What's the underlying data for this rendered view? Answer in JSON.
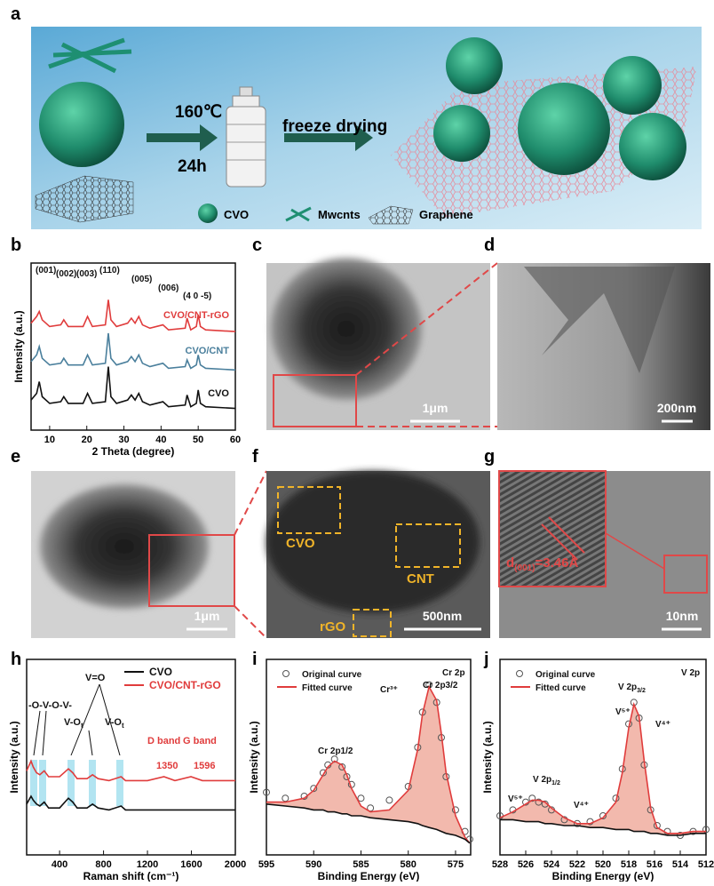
{
  "panel_labels": [
    "a",
    "b",
    "c",
    "d",
    "e",
    "f",
    "g",
    "h",
    "i",
    "j"
  ],
  "scheme": {
    "temperature": "160℃",
    "time": "24h",
    "step2": "freeze drying",
    "legend": [
      "CVO",
      "Mwcnts",
      "Graphene"
    ]
  },
  "micrographs": {
    "c": {
      "scale_bar": "1μm"
    },
    "d": {
      "scale_bar": "200nm"
    },
    "e": {
      "scale_bar": "1μm"
    },
    "f": {
      "scale_bar": "500nm",
      "labels": [
        "CVO",
        "CNT",
        "rGO"
      ]
    },
    "g": {
      "scale_bar": "10nm",
      "d_spacing": {
        "text": "d",
        "sub": "(001)",
        "rest": "=3.46Å"
      }
    }
  },
  "chart_data": [
    {
      "type": "line",
      "xlabel": "2 Theta (degree)",
      "ylabel": "Intensity (a.u.)",
      "xlim": [
        5,
        60
      ],
      "ylim": [
        0,
        10
      ],
      "xticks": [
        10,
        20,
        30,
        40,
        50,
        60
      ],
      "x": [
        5,
        6.5,
        7.2,
        8,
        10,
        13,
        13.8,
        15,
        19,
        20.2,
        21.5,
        25,
        25.8,
        26.5,
        28,
        31,
        32,
        33,
        34,
        35,
        37,
        40.5,
        42,
        46.5,
        47,
        48,
        49.5,
        50,
        50.6,
        52,
        60
      ],
      "annotations": [
        {
          "text": "(001)"
        },
        {
          "text": "(002)"
        },
        {
          "text": "(003)"
        },
        {
          "text": "(110)"
        },
        {
          "text": "(005)"
        },
        {
          "text": "(006)"
        },
        {
          "text": "(4 0 -5)"
        }
      ],
      "series": [
        {
          "name": "CVO/CNT-rGO",
          "color": "#e03c3c",
          "mode": "line",
          "values": [
            6.4,
            6.8,
            7.1,
            6.6,
            6.2,
            6.3,
            6.6,
            6.2,
            6.2,
            6.8,
            6.2,
            6.3,
            7.8,
            6.6,
            6.2,
            6.4,
            6.7,
            6.4,
            6.8,
            6.3,
            6.1,
            6.3,
            6.0,
            6.1,
            6.7,
            6.0,
            6.2,
            6.9,
            6.2,
            6.0,
            5.9
          ]
        },
        {
          "name": "CVO/CNT",
          "color": "#4a7f9c",
          "mode": "line",
          "values": [
            4.1,
            4.5,
            5.0,
            4.3,
            3.9,
            4.0,
            4.3,
            3.9,
            3.9,
            4.5,
            3.9,
            4.0,
            5.8,
            4.3,
            3.9,
            4.1,
            4.4,
            4.1,
            4.5,
            4.0,
            3.8,
            4.0,
            3.7,
            3.8,
            4.2,
            3.7,
            3.9,
            4.5,
            3.9,
            3.7,
            3.6
          ]
        },
        {
          "name": "CVO",
          "color": "#111111",
          "mode": "line",
          "values": [
            1.8,
            2.2,
            2.9,
            2.0,
            1.6,
            1.7,
            2.0,
            1.6,
            1.6,
            2.2,
            1.6,
            1.7,
            3.8,
            2.0,
            1.6,
            1.8,
            2.1,
            1.8,
            2.2,
            1.7,
            1.5,
            1.7,
            1.4,
            1.5,
            2.1,
            1.4,
            1.6,
            2.4,
            1.6,
            1.4,
            1.3
          ]
        }
      ]
    },
    {
      "type": "line",
      "xlabel": "Raman shift (cm⁻¹)",
      "ylabel": "Intensity (a.u.)",
      "xlim": [
        100,
        2000
      ],
      "ylim": [
        0,
        10
      ],
      "xticks": [
        400,
        800,
        1200,
        1600,
        2000
      ],
      "x": [
        100,
        140,
        160,
        190,
        220,
        260,
        300,
        400,
        480,
        520,
        560,
        650,
        700,
        750,
        850,
        960,
        1000,
        1200,
        1350,
        1450,
        1596,
        1700,
        2000
      ],
      "annotations": [
        {
          "text": "-O-V-O-V-"
        },
        {
          "text": "V=O"
        },
        {
          "text": "V-O",
          "sub": "t"
        },
        {
          "text": "V-O",
          "sub": "t"
        },
        {
          "text": "D band"
        },
        {
          "text": "G band"
        },
        {
          "text": "1350"
        },
        {
          "text": "1596"
        }
      ],
      "series": [
        {
          "name": "CVO",
          "color": "#111111",
          "mode": "line",
          "values": [
            2.6,
            3.0,
            2.8,
            2.6,
            2.5,
            2.7,
            2.4,
            2.4,
            2.9,
            2.7,
            2.4,
            2.4,
            2.6,
            2.4,
            2.3,
            2.5,
            2.3,
            2.3,
            2.3,
            2.3,
            2.3,
            2.3,
            2.3
          ]
        },
        {
          "name": "CVO/CNT-rGO",
          "color": "#e03c3c",
          "mode": "line",
          "values": [
            4.3,
            4.8,
            4.5,
            4.2,
            4.1,
            4.3,
            4.0,
            4.0,
            4.4,
            4.2,
            3.9,
            3.9,
            4.1,
            3.9,
            3.8,
            4.0,
            3.8,
            3.8,
            4.0,
            3.8,
            4.0,
            3.8,
            3.8
          ]
        }
      ]
    },
    {
      "type": "line",
      "xlabel": "Binding Energy (eV)",
      "ylabel": "Intensity (a.u.)",
      "xlim": [
        595,
        573.4
      ],
      "ylim": [
        0,
        10
      ],
      "xticks": [
        595,
        590,
        585,
        580,
        575
      ],
      "x": [
        595,
        593,
        591,
        590,
        589,
        588.5,
        587.8,
        587,
        586.5,
        586,
        585,
        584,
        582,
        580,
        579,
        578.5,
        577.8,
        577,
        576.5,
        576,
        575,
        574,
        573.5
      ],
      "annotations": [
        {
          "text": "Cr 2p"
        },
        {
          "text": "Cr³⁺"
        },
        {
          "text": "Cr 2p1/2"
        },
        {
          "text": "Cr 2p3/2"
        }
      ],
      "series": [
        {
          "name": "Original curve",
          "color": "#555555",
          "mode": "markers",
          "values": [
            3.2,
            2.9,
            3.0,
            3.4,
            4.2,
            4.6,
            4.9,
            4.5,
            4.0,
            3.6,
            2.9,
            2.4,
            2.8,
            3.5,
            5.5,
            7.3,
            8.7,
            7.8,
            6.0,
            4.0,
            2.3,
            1.2,
            0.8
          ]
        },
        {
          "name": "Fitted curve",
          "color": "#e03c3c",
          "mode": "line",
          "fill": "#e8806a",
          "values": [
            2.7,
            2.7,
            2.9,
            3.3,
            4.1,
            4.5,
            4.8,
            4.6,
            4.1,
            3.4,
            2.5,
            2.2,
            2.3,
            3.3,
            5.4,
            7.2,
            8.6,
            7.9,
            6.2,
            4.2,
            2.0,
            0.9,
            0.6
          ]
        },
        {
          "color": "#111111",
          "mode": "line",
          "values": [
            2.6,
            2.5,
            2.4,
            2.3,
            2.3,
            2.2,
            2.2,
            2.1,
            2.1,
            2.0,
            2.0,
            1.9,
            1.8,
            1.7,
            1.6,
            1.5,
            1.4,
            1.3,
            1.2,
            1.1,
            1.0,
            0.8,
            0.6
          ]
        }
      ]
    },
    {
      "type": "line",
      "xlabel": "Binding Energy (eV)",
      "ylabel": "Intensity (a.u.)",
      "xlim": [
        528,
        512
      ],
      "ylim": [
        0,
        10
      ],
      "xticks": [
        528,
        526,
        524,
        522,
        520,
        518,
        516,
        514,
        512
      ],
      "x": [
        528,
        527,
        526,
        525.5,
        525,
        524.5,
        524,
        523,
        522,
        521,
        520,
        519,
        518.5,
        518,
        517.6,
        517.2,
        516.8,
        516.3,
        515.8,
        515,
        514,
        513,
        512
      ],
      "annotations": [
        {
          "text": "V 2p"
        },
        {
          "text": "V 2p",
          "sub": "3/2"
        },
        {
          "text": "V⁵⁺"
        },
        {
          "text": "V⁴⁺"
        },
        {
          "text": "V 2p",
          "sub": "1/2"
        },
        {
          "text": "V⁵⁺"
        },
        {
          "text": "V⁴⁺"
        }
      ],
      "series": [
        {
          "name": "Original curve",
          "color": "#555555",
          "mode": "markers",
          "values": [
            2.0,
            2.3,
            2.7,
            2.9,
            2.7,
            2.6,
            2.3,
            1.8,
            1.6,
            1.7,
            2.0,
            2.9,
            4.4,
            6.7,
            7.8,
            7.0,
            4.6,
            2.3,
            1.5,
            1.2,
            1.0,
            1.2,
            1.3
          ]
        },
        {
          "name": "Fitted curve",
          "color": "#e03c3c",
          "mode": "line",
          "fill": "#e8806a",
          "values": [
            1.9,
            2.2,
            2.6,
            2.8,
            2.8,
            2.7,
            2.4,
            1.9,
            1.6,
            1.6,
            1.9,
            2.7,
            4.2,
            6.5,
            7.7,
            7.1,
            4.8,
            2.4,
            1.4,
            1.1,
            1.1,
            1.2,
            1.2
          ]
        },
        {
          "color": "#111111",
          "mode": "line",
          "values": [
            1.8,
            1.8,
            1.7,
            1.7,
            1.7,
            1.6,
            1.6,
            1.5,
            1.5,
            1.4,
            1.4,
            1.3,
            1.3,
            1.3,
            1.2,
            1.2,
            1.2,
            1.1,
            1.1,
            1.0,
            1.0,
            1.1,
            1.1
          ]
        }
      ]
    }
  ]
}
